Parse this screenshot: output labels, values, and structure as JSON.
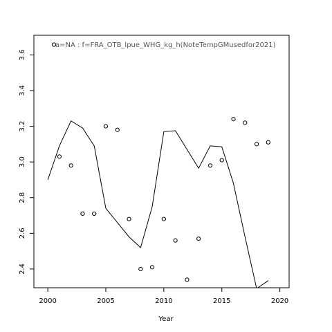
{
  "chart_data": {
    "type": "scatter",
    "title": "",
    "xlabel": "Year",
    "ylabel": "",
    "xlim": [
      1998.8,
      2020.8
    ],
    "ylim": [
      2.295,
      3.71
    ],
    "xticks": [
      2000,
      2005,
      2010,
      2015,
      2020
    ],
    "yticks": [
      2.4,
      2.6,
      2.8,
      3.0,
      3.2,
      3.4,
      3.6
    ],
    "xtick_labels": [
      "2000",
      "2005",
      "2010",
      "2015",
      "2020"
    ],
    "ytick_labels": [
      "2.4",
      "2.6",
      "2.8",
      "3.0",
      "3.2",
      "3.4",
      "3.6"
    ],
    "annotation": "a=NA  :  f=FRA_OTB_lpue_WHG_kg_h(NoteTempGMusedfor2021)",
    "grid": false,
    "series": [
      {
        "type": "points",
        "x": [
          2001,
          2002,
          2003,
          2004,
          2005,
          2006,
          2007,
          2008,
          2009,
          2010,
          2011,
          2012,
          2013,
          2014,
          2015,
          2016,
          2017,
          2018,
          2019
        ],
        "y": [
          3.03,
          2.98,
          2.71,
          2.71,
          3.2,
          3.18,
          2.68,
          2.4,
          2.41,
          2.68,
          2.56,
          2.34,
          2.57,
          2.98,
          3.01,
          3.24,
          3.22,
          3.1,
          3.11
        ]
      },
      {
        "type": "line",
        "x": [
          2000,
          2001,
          2002,
          2003,
          2004,
          2005,
          2006,
          2007,
          2008,
          2009,
          2010,
          2011,
          2012,
          2013,
          2014,
          2015,
          2016,
          2017,
          2018,
          2019
        ],
        "y": [
          2.9,
          3.09,
          3.23,
          3.19,
          3.09,
          2.74,
          2.66,
          2.58,
          2.52,
          2.75,
          3.17,
          3.175,
          3.07,
          2.965,
          3.09,
          3.085,
          2.88,
          2.58,
          2.29,
          2.335
        ]
      }
    ]
  }
}
